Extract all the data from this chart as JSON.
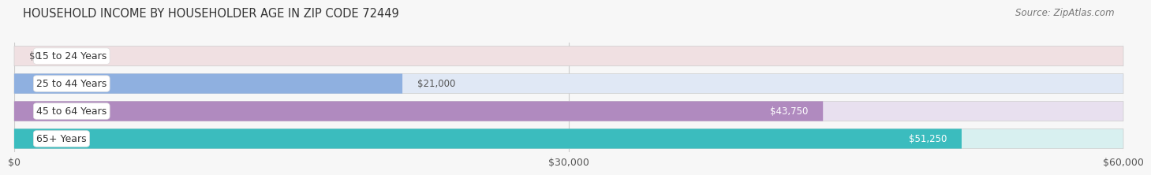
{
  "title": "HOUSEHOLD INCOME BY HOUSEHOLDER AGE IN ZIP CODE 72449",
  "source": "Source: ZipAtlas.com",
  "categories": [
    "15 to 24 Years",
    "25 to 44 Years",
    "45 to 64 Years",
    "65+ Years"
  ],
  "values": [
    0,
    21000,
    43750,
    51250
  ],
  "bar_colors": [
    "#f0909a",
    "#8fb0e0",
    "#b08abf",
    "#3bbcbe"
  ],
  "bg_colors": [
    "#f0e0e2",
    "#e0e8f5",
    "#e8e0ef",
    "#d8f0f0"
  ],
  "xlim": [
    0,
    60000
  ],
  "xticks": [
    0,
    30000,
    60000
  ],
  "xtick_labels": [
    "$0",
    "$30,000",
    "$60,000"
  ],
  "label_inside_threshold": 30000,
  "bar_height": 0.72,
  "title_fontsize": 10.5,
  "source_fontsize": 8.5,
  "label_fontsize": 8.5,
  "cat_fontsize": 9,
  "xtick_fontsize": 9,
  "background_color": "#f7f7f7"
}
